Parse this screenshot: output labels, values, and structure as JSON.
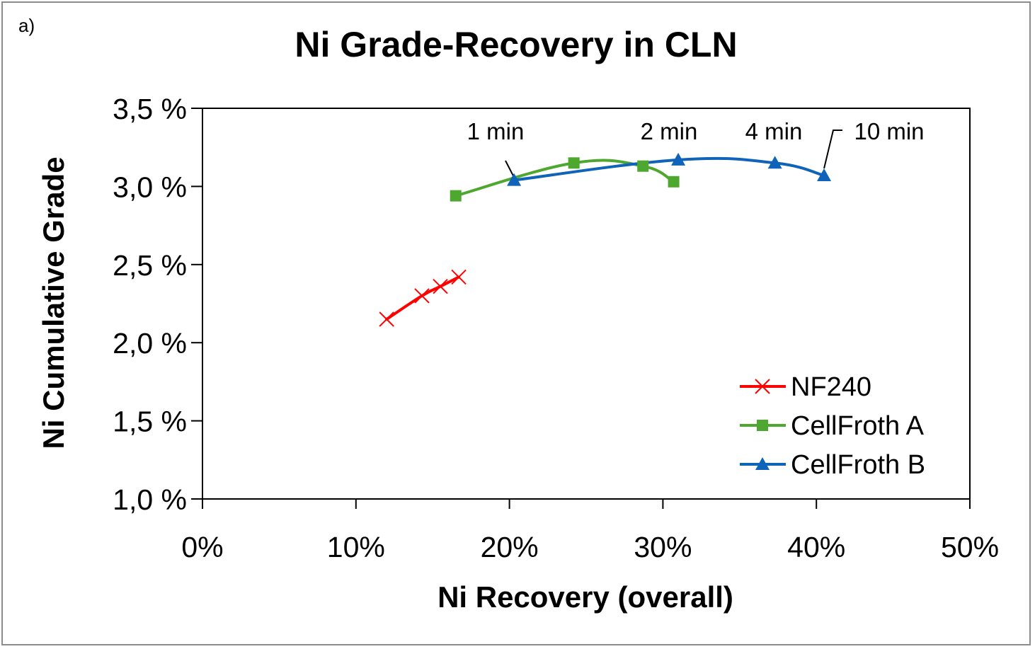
{
  "panel_label": "a)",
  "chart_data": {
    "type": "line",
    "title": "Ni Grade-Recovery in CLN",
    "xlabel": "Ni Recovery (overall)",
    "ylabel": "Ni Cumulative Grade",
    "xlim": [
      0,
      50
    ],
    "ylim": [
      1.0,
      3.5
    ],
    "x_ticks": [
      0,
      10,
      20,
      30,
      40,
      50
    ],
    "x_tick_labels": [
      "0%",
      "10%",
      "20%",
      "30%",
      "40%",
      "50%"
    ],
    "y_ticks": [
      1.0,
      1.5,
      2.0,
      2.5,
      3.0,
      3.5
    ],
    "y_tick_labels": [
      "1,0 %",
      "1,5 %",
      "2,0 %",
      "2,5 %",
      "3,0 %",
      "3,5 %"
    ],
    "grid": false,
    "legend_position": "bottom-right",
    "series": [
      {
        "name": "NF240",
        "color": "#ff0000",
        "marker": "x",
        "x": [
          12.0,
          14.3,
          15.5,
          16.7
        ],
        "y": [
          2.15,
          2.3,
          2.36,
          2.42
        ]
      },
      {
        "name": "CellFroth A",
        "color": "#4ea72e",
        "marker": "square",
        "x": [
          16.5,
          24.2,
          28.7,
          30.7
        ],
        "y": [
          2.94,
          3.15,
          3.13,
          3.03
        ]
      },
      {
        "name": "CellFroth B",
        "color": "#0f63b8",
        "marker": "triangle",
        "x": [
          20.3,
          31.0,
          37.3,
          40.5
        ],
        "y": [
          3.04,
          3.17,
          3.15,
          3.07
        ]
      }
    ],
    "annotations": [
      {
        "text": "1 min",
        "series": "CellFroth B",
        "point_index": 0
      },
      {
        "text": "2 min",
        "series": "CellFroth B",
        "point_index": 1
      },
      {
        "text": "4 min",
        "series": "CellFroth B",
        "point_index": 2
      },
      {
        "text": "10 min",
        "series": "CellFroth B",
        "point_index": 3
      }
    ]
  }
}
